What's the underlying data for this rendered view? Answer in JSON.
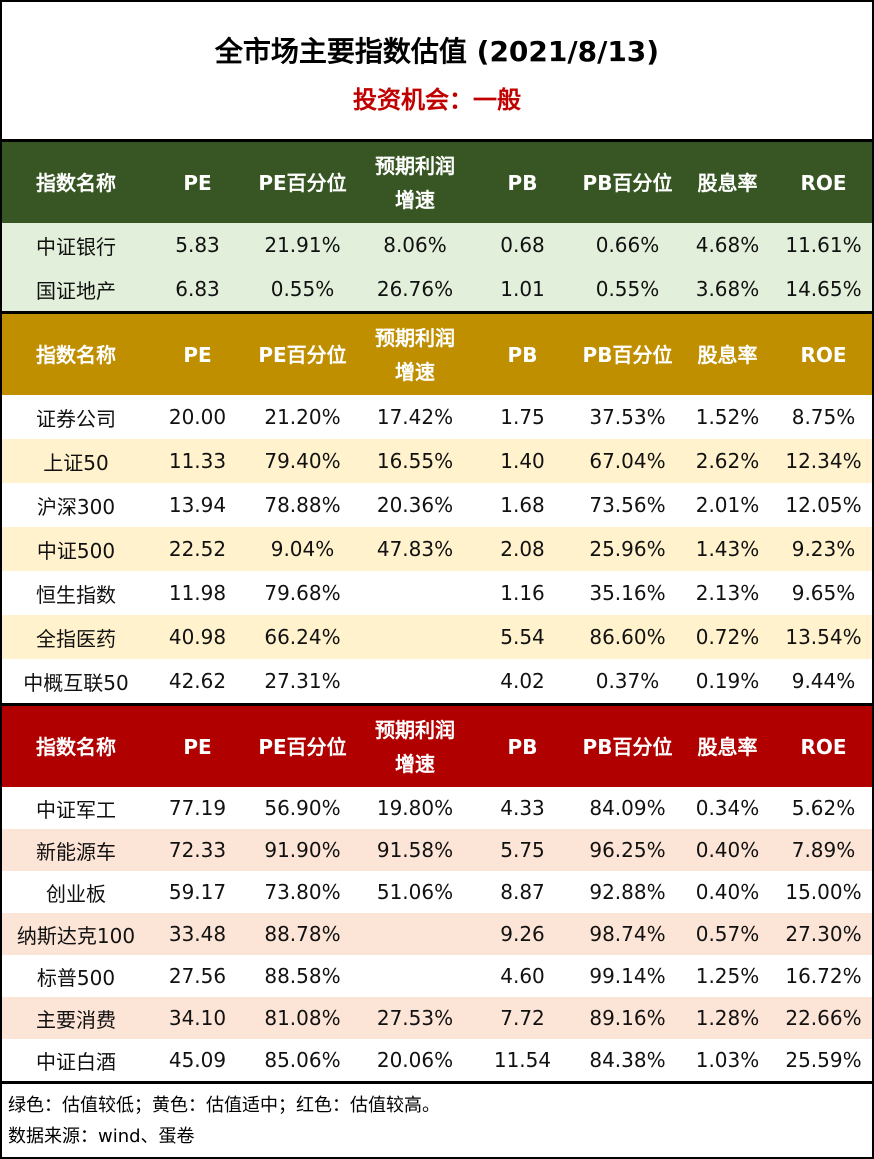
{
  "title": "全市场主要指数估值 (2021/8/13)",
  "subtitle": "投资机会：一般",
  "headers": [
    "指数名称",
    "PE",
    "PE百分位",
    "预期利润\n增速",
    "PB",
    "PB百分位",
    "股息率",
    "ROE"
  ],
  "sections": [
    {
      "name": "low",
      "header_color": "#375623",
      "row_colors": [
        "#e2efda",
        "#e2efda"
      ],
      "rows": [
        [
          "中证银行",
          "5.83",
          "21.91%",
          "8.06%",
          "0.68",
          "0.66%",
          "4.68%",
          "11.61%"
        ],
        [
          "国证地产",
          "6.83",
          "0.55%",
          "26.76%",
          "1.01",
          "0.55%",
          "3.68%",
          "14.65%"
        ]
      ]
    },
    {
      "name": "mid",
      "header_color": "#bf8f00",
      "row_colors": [
        "#ffffff",
        "#fff2cc"
      ],
      "rows": [
        [
          "证券公司",
          "20.00",
          "21.20%",
          "17.42%",
          "1.75",
          "37.53%",
          "1.52%",
          "8.75%"
        ],
        [
          "上证50",
          "11.33",
          "79.40%",
          "16.55%",
          "1.40",
          "67.04%",
          "2.62%",
          "12.34%"
        ],
        [
          "沪深300",
          "13.94",
          "78.88%",
          "20.36%",
          "1.68",
          "73.56%",
          "2.01%",
          "12.05%"
        ],
        [
          "中证500",
          "22.52",
          "9.04%",
          "47.83%",
          "2.08",
          "25.96%",
          "1.43%",
          "9.23%"
        ],
        [
          "恒生指数",
          "11.98",
          "79.68%",
          "",
          "1.16",
          "35.16%",
          "2.13%",
          "9.65%"
        ],
        [
          "全指医药",
          "40.98",
          "66.24%",
          "",
          "5.54",
          "86.60%",
          "0.72%",
          "13.54%"
        ],
        [
          "中概互联50",
          "42.62",
          "27.31%",
          "",
          "4.02",
          "0.37%",
          "0.19%",
          "9.44%"
        ]
      ]
    },
    {
      "name": "high",
      "header_color": "#b00000",
      "row_colors": [
        "#ffffff",
        "#fce4d6"
      ],
      "rows": [
        [
          "中证军工",
          "77.19",
          "56.90%",
          "19.80%",
          "4.33",
          "84.09%",
          "0.34%",
          "5.62%"
        ],
        [
          "新能源车",
          "72.33",
          "91.90%",
          "91.58%",
          "5.75",
          "96.25%",
          "0.40%",
          "7.89%"
        ],
        [
          "创业板",
          "59.17",
          "73.80%",
          "51.06%",
          "8.87",
          "92.88%",
          "0.40%",
          "15.00%"
        ],
        [
          "纳斯达克100",
          "33.48",
          "88.78%",
          "",
          "9.26",
          "98.74%",
          "0.57%",
          "27.30%"
        ],
        [
          "标普500",
          "27.56",
          "88.58%",
          "",
          "4.60",
          "99.14%",
          "1.25%",
          "16.72%"
        ],
        [
          "主要消费",
          "34.10",
          "81.08%",
          "27.53%",
          "7.72",
          "89.16%",
          "1.28%",
          "22.66%"
        ],
        [
          "中证白酒",
          "45.09",
          "85.06%",
          "20.06%",
          "11.54",
          "84.38%",
          "1.03%",
          "25.59%"
        ]
      ]
    }
  ],
  "footer": {
    "legend": "绿色：估值较低；黄色：估值适中；红色：估值较高。",
    "source": "数据来源：wind、蛋卷"
  }
}
